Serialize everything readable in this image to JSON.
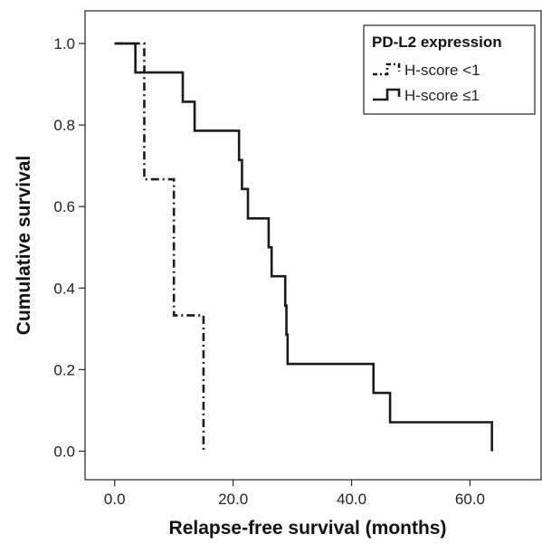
{
  "chart_data": {
    "type": "line",
    "title": "",
    "xlabel": "Relapse-free survival (months)",
    "ylabel": "Cumulative survival",
    "xlim": [
      -5,
      72
    ],
    "ylim": [
      -0.07,
      1.08
    ],
    "x_ticks": [
      0,
      20,
      40,
      60
    ],
    "x_tick_labels": [
      "0.0",
      "20.0",
      "40.0",
      "60.0"
    ],
    "y_ticks": [
      0,
      0.2,
      0.4,
      0.6,
      0.8,
      1.0
    ],
    "y_tick_labels": [
      "0.0",
      "0.2",
      "0.4",
      "0.6",
      "0.8",
      "1.0"
    ],
    "grid": false,
    "legend": {
      "title": "PD-L2 expression",
      "position": "top-right"
    },
    "series": [
      {
        "name": "H-score <1",
        "style": "dash-dot",
        "step_points": [
          [
            0,
            1.0
          ],
          [
            5,
            0.667
          ],
          [
            10,
            0.333
          ],
          [
            15,
            0.0
          ]
        ]
      },
      {
        "name": "H-score ≤1",
        "style": "solid",
        "step_points": [
          [
            0,
            1.0
          ],
          [
            3.5,
            0.929
          ],
          [
            11.5,
            0.857
          ],
          [
            13.5,
            0.786
          ],
          [
            21,
            0.714
          ],
          [
            21.5,
            0.643
          ],
          [
            22.5,
            0.571
          ],
          [
            26,
            0.5
          ],
          [
            26.5,
            0.429
          ],
          [
            28.8,
            0.357
          ],
          [
            29,
            0.286
          ],
          [
            29.2,
            0.214
          ],
          [
            43.7,
            0.143
          ],
          [
            46.5,
            0.071
          ],
          [
            63.7,
            0.0
          ]
        ]
      }
    ]
  }
}
